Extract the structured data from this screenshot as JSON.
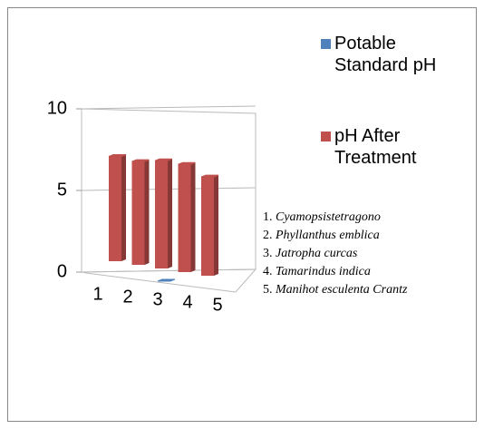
{
  "chart_data": {
    "type": "bar3d",
    "categories": [
      "1",
      "2",
      "3",
      "4",
      "5"
    ],
    "series": [
      {
        "name": "Potable Standard pH",
        "color": "#4f81bd",
        "values": [
          null,
          null,
          0,
          null,
          null
        ]
      },
      {
        "name": "pH After Treatment",
        "color": "#c0504d",
        "values": [
          7.0,
          6.9,
          7.2,
          7.2,
          6.6
        ]
      }
    ],
    "ylim": [
      0,
      10
    ],
    "yticks": [
      0,
      5,
      10
    ],
    "grid": true,
    "annotations": [
      {
        "number": "1.",
        "name": "Cyamopsistetragono"
      },
      {
        "number": "2.",
        "name": "Phyllanthus emblica"
      },
      {
        "number": "3.",
        "name": "Jatropha curcas"
      },
      {
        "number": "4.",
        "name": "Tamarindus indica"
      },
      {
        "number": "5.",
        "name": "Manihot esculenta Crantz"
      }
    ]
  }
}
